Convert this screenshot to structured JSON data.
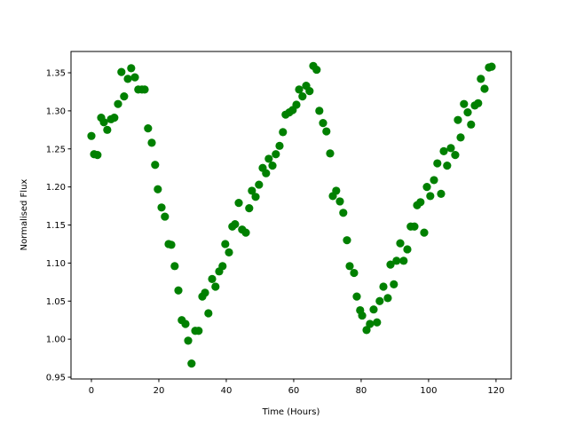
{
  "chart_data": {
    "type": "scatter",
    "title": "",
    "xlabel": "Time (Hours)",
    "ylabel": "Normalised Flux",
    "xlim": [
      -6.05,
      124.5
    ],
    "ylim": [
      0.9477,
      1.378
    ],
    "xticks": [
      0,
      20,
      40,
      60,
      80,
      100,
      120
    ],
    "xtick_labels": [
      "0",
      "20",
      "40",
      "60",
      "80",
      "100",
      "120"
    ],
    "yticks": [
      0.95,
      1.0,
      1.05,
      1.1,
      1.15,
      1.2,
      1.25,
      1.3,
      1.35
    ],
    "ytick_labels": [
      "0.95",
      "1.00",
      "1.05",
      "1.10",
      "1.15",
      "1.20",
      "1.25",
      "1.30",
      "1.35"
    ],
    "grid": false,
    "marker_color": "#008000",
    "x": [
      0.0,
      0.8,
      1.8,
      2.9,
      3.7,
      4.7,
      5.8,
      6.8,
      7.9,
      8.9,
      9.7,
      10.8,
      11.8,
      12.9,
      13.9,
      15.0,
      15.8,
      16.8,
      17.9,
      18.9,
      19.7,
      20.8,
      21.8,
      22.9,
      23.7,
      24.7,
      25.8,
      26.8,
      27.9,
      28.7,
      29.7,
      30.8,
      31.8,
      32.9,
      33.7,
      34.7,
      35.8,
      36.8,
      37.9,
      38.9,
      39.7,
      40.8,
      41.8,
      42.6,
      43.7,
      44.7,
      45.8,
      46.8,
      47.6,
      48.7,
      49.7,
      50.8,
      51.8,
      52.6,
      53.7,
      54.7,
      55.8,
      56.8,
      57.6,
      58.7,
      59.7,
      60.8,
      61.6,
      62.6,
      63.7,
      64.7,
      65.8,
      66.8,
      67.6,
      68.7,
      69.7,
      70.8,
      71.6,
      72.6,
      73.7,
      74.7,
      75.8,
      76.6,
      77.9,
      78.7,
      79.7,
      80.3,
      81.6,
      82.6,
      83.7,
      84.7,
      85.5,
      86.6,
      87.9,
      88.7,
      89.7,
      90.5,
      91.6,
      92.6,
      93.7,
      94.7,
      95.8,
      96.6,
      97.6,
      98.7,
      99.5,
      100.5,
      101.6,
      102.6,
      103.7,
      104.5,
      105.5,
      106.6,
      107.9,
      108.7,
      109.5,
      110.5,
      111.6,
      112.6,
      113.7,
      114.7,
      115.5,
      116.6,
      117.9,
      118.7
    ],
    "y": [
      1.267,
      1.243,
      1.242,
      1.291,
      1.285,
      1.275,
      1.289,
      1.291,
      1.309,
      1.351,
      1.319,
      1.342,
      1.356,
      1.344,
      1.328,
      1.328,
      1.328,
      1.277,
      1.258,
      1.229,
      1.197,
      1.173,
      1.161,
      1.125,
      1.124,
      1.096,
      1.064,
      1.025,
      1.02,
      0.998,
      0.968,
      1.011,
      1.011,
      1.056,
      1.061,
      1.034,
      1.079,
      1.069,
      1.089,
      1.096,
      1.125,
      1.114,
      1.148,
      1.151,
      1.179,
      1.144,
      1.14,
      1.172,
      1.195,
      1.187,
      1.203,
      1.225,
      1.218,
      1.237,
      1.228,
      1.243,
      1.254,
      1.272,
      1.295,
      1.298,
      1.301,
      1.308,
      1.328,
      1.319,
      1.333,
      1.326,
      1.359,
      1.354,
      1.3,
      1.284,
      1.273,
      1.244,
      1.188,
      1.195,
      1.181,
      1.166,
      1.13,
      1.096,
      1.087,
      1.056,
      1.038,
      1.031,
      1.012,
      1.02,
      1.039,
      1.022,
      1.05,
      1.069,
      1.054,
      1.098,
      1.072,
      1.103,
      1.126,
      1.103,
      1.118,
      1.148,
      1.148,
      1.176,
      1.18,
      1.14,
      1.2,
      1.188,
      1.209,
      1.231,
      1.191,
      1.247,
      1.228,
      1.251,
      1.242,
      1.288,
      1.265,
      1.309,
      1.298,
      1.282,
      1.307,
      1.31,
      1.342,
      1.329,
      1.357,
      1.358
    ]
  }
}
